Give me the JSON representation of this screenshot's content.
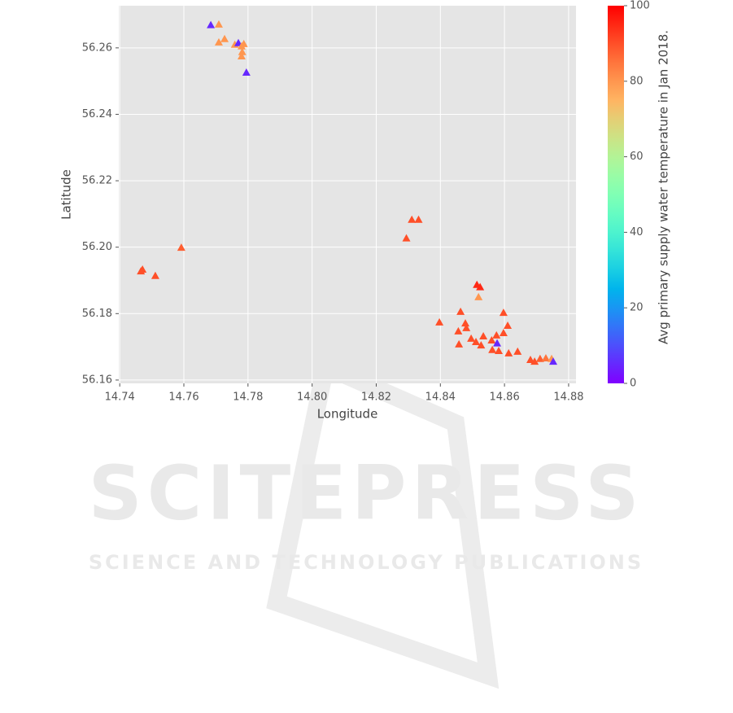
{
  "chart_data": {
    "type": "scatter",
    "xlabel": "Longitude",
    "ylabel": "Latitude",
    "colorbar_label": "Avg primary supply water temperature in Jan 2018.",
    "xlim": [
      14.7397,
      14.8823
    ],
    "ylim": [
      56.159,
      56.2727
    ],
    "clim": [
      0,
      100
    ],
    "xticks": [
      14.74,
      14.76,
      14.78,
      {
        "value": 14.8,
        "label": "14.80"
      },
      14.82,
      14.84,
      14.86,
      14.88
    ],
    "yticks": [
      56.16,
      56.18,
      {
        "value": 56.2,
        "label": "56.20"
      },
      56.22,
      56.24,
      56.26
    ],
    "cticks": [
      0,
      20,
      40,
      60,
      80,
      100
    ],
    "colormap": "rainbow",
    "grid": true,
    "marker": "triangle",
    "x": [
      14.7684,
      14.7709,
      14.7709,
      14.7727,
      14.7759,
      14.777,
      14.778,
      14.7787,
      14.7782,
      14.778,
      14.7795,
      14.7471,
      14.7466,
      14.7511,
      14.7592,
      14.8294,
      14.8311,
      14.8332,
      14.8397,
      14.8463,
      14.8456,
      14.8478,
      14.8481,
      14.8458,
      14.8496,
      14.8514,
      14.8524,
      14.8519,
      14.8511,
      14.8527,
      14.8534,
      14.856,
      14.8575,
      14.8577,
      14.8562,
      14.8582,
      14.8597,
      14.861,
      14.8597,
      14.8613,
      14.8641,
      14.8681,
      14.8694,
      14.8711,
      14.8729,
      14.8747,
      14.8752
    ],
    "y": [
      56.2669,
      56.2671,
      56.2617,
      56.2627,
      56.261,
      56.2615,
      56.2605,
      56.2612,
      56.2588,
      56.2575,
      56.2526,
      56.1933,
      56.1928,
      56.1914,
      56.1999,
      56.2027,
      56.2083,
      56.2083,
      56.1774,
      56.1806,
      56.1747,
      56.1771,
      56.1757,
      56.1708,
      56.1725,
      56.1887,
      56.188,
      56.185,
      56.1715,
      56.1705,
      56.1732,
      56.172,
      56.1735,
      56.1711,
      56.1691,
      56.1688,
      56.1803,
      56.1764,
      56.1742,
      56.1681,
      56.1686,
      56.1661,
      56.1656,
      56.1664,
      56.1666,
      56.1664,
      56.1656
    ],
    "c": [
      5,
      80,
      80,
      80,
      80,
      5,
      80,
      80,
      80,
      80,
      5,
      90,
      90,
      90,
      88,
      90,
      90,
      90,
      90,
      90,
      90,
      90,
      90,
      90,
      90,
      95,
      95,
      80,
      90,
      90,
      90,
      90,
      90,
      5,
      90,
      90,
      90,
      90,
      90,
      90,
      90,
      90,
      90,
      88,
      85,
      80,
      5
    ]
  },
  "watermark": {
    "title": "SCITEPRESS",
    "subtitle": "SCIENCE AND TECHNOLOGY PUBLICATIONS"
  }
}
